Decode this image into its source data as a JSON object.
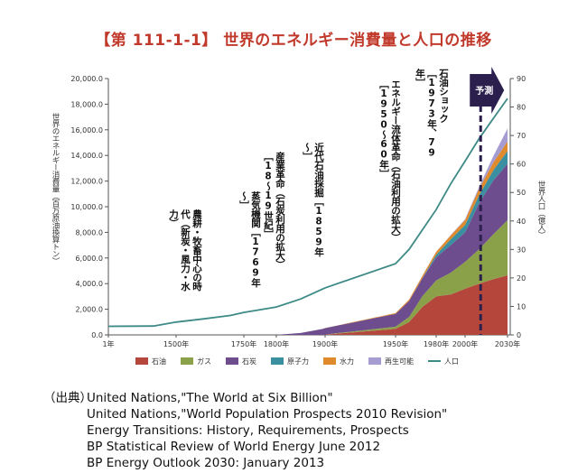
{
  "title": "【第 111-1-1】 世界のエネルギー消費量と人口の推移",
  "chart_data": {
    "type": "area",
    "stacked": true,
    "ylabel_left": "世界のエネルギー消費量（百万原油換算トン）",
    "ylabel_right": "世界人口（億人）",
    "y_left_ticks": [
      "0.0",
      "2,000.0",
      "4,000.0",
      "6,000.0",
      "8,000.0",
      "10,000.0",
      "12,000.0",
      "14,000.0",
      "16,000.0",
      "18,000.0",
      "20,000.0"
    ],
    "y_right_ticks": [
      "0",
      "10",
      "20",
      "30",
      "40",
      "50",
      "60",
      "70",
      "80",
      "90"
    ],
    "ylim_left": [
      0,
      20000
    ],
    "ylim_right": [
      0,
      90
    ],
    "x_ticks": [
      "1年",
      "1500年",
      "1750年",
      "1800年",
      "1900年",
      "1950年",
      "1980年",
      "2000年",
      "2030年"
    ],
    "forecast_label": "予測",
    "series": [
      {
        "name": "石油",
        "color": "#b5463c",
        "x": [
          1900,
          1950,
          1960,
          1970,
          1980,
          1990,
          2000,
          2010,
          2020,
          2030
        ],
        "values": [
          20,
          470,
          1000,
          2200,
          3000,
          3150,
          3600,
          4000,
          4350,
          4650
        ]
      },
      {
        "name": "ガス",
        "color": "#8aa14a",
        "x": [
          1900,
          1950,
          1960,
          1970,
          1980,
          1990,
          2000,
          2010,
          2020,
          2030
        ],
        "values": [
          10,
          170,
          400,
          850,
          1250,
          1700,
          2100,
          2700,
          3500,
          4300
        ]
      },
      {
        "name": "石炭",
        "color": "#6e4d8e",
        "x": [
          1800,
          1850,
          1900,
          1950,
          1960,
          1970,
          1980,
          1990,
          2000,
          2010,
          2020,
          2030
        ],
        "values": [
          10,
          150,
          500,
          1000,
          1250,
          1400,
          1800,
          2150,
          2300,
          3600,
          4200,
          4400
        ]
      },
      {
        "name": "原子力",
        "color": "#3a8fa0",
        "x": [
          1960,
          1970,
          1980,
          1990,
          2000,
          2010,
          2020,
          2030
        ],
        "values": [
          0,
          20,
          200,
          450,
          580,
          620,
          800,
          1000
        ]
      },
      {
        "name": "水力",
        "color": "#e08a2e",
        "x": [
          1900,
          1950,
          1960,
          1970,
          1980,
          1990,
          2000,
          2010,
          2020,
          2030
        ],
        "values": [
          5,
          60,
          100,
          170,
          230,
          300,
          380,
          500,
          600,
          750
        ]
      },
      {
        "name": "再生可能",
        "color": "#a79cd2",
        "x": [
          1960,
          1970,
          1980,
          1990,
          2000,
          2010,
          2020,
          2030
        ],
        "values": [
          0,
          5,
          10,
          30,
          60,
          150,
          500,
          1000
        ]
      }
    ],
    "population": {
      "name": "人口",
      "color": "#3d8a86",
      "x": [
        1,
        1000,
        1500,
        1600,
        1700,
        1750,
        1800,
        1850,
        1900,
        1950,
        1960,
        1970,
        1980,
        1990,
        2000,
        2010,
        2020,
        2030
      ],
      "values": [
        3,
        3.1,
        4.5,
        5.6,
        6.8,
        7.9,
        9.8,
        12.6,
        16.5,
        25,
        30,
        37,
        44,
        53,
        61,
        69,
        76,
        83
      ]
    },
    "annotations": [
      {
        "text": "農耕・牧畜中心の時代（新炭・風力・水力）"
      },
      {
        "text": "蒸気機関［1769年～］"
      },
      {
        "text": "産業革命（石炭利用の拡大）［18～19世紀］"
      },
      {
        "text": "近代石油採掘［1859年～］"
      },
      {
        "text": "エネルギー流体革命（石油利用の拡大）［1950～60年］"
      },
      {
        "text": "石油ショック［1973年、79年］"
      }
    ]
  },
  "sources": {
    "label": "（出典）",
    "lines": [
      "United Nations,\"The World at Six Billion\"",
      "United Nations,\"World Population Prospects 2010 Revision\"",
      "Energy Transitions: History, Requirements, Prospects",
      "BP Statistical Review of World Energy June 2012",
      "BP Energy Outlook 2030: January 2013"
    ]
  }
}
